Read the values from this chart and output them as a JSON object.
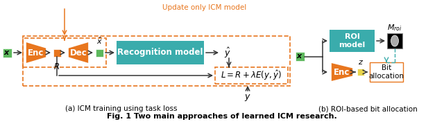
{
  "fig_width": 6.4,
  "fig_height": 1.79,
  "dpi": 100,
  "orange": "#E8761E",
  "teal": "#3AACAC",
  "green": "#5DB85D",
  "yellow": "#E8D44D",
  "gray_line": "#888888",
  "dark_arrow": "#333333",
  "caption": "Fig. 1 Two main approaches of learned ICM research.",
  "label_a": "(a) ICM training using task loss",
  "label_b": "(b) ROI-based bit allocation",
  "update_text": "Update only ICM model"
}
